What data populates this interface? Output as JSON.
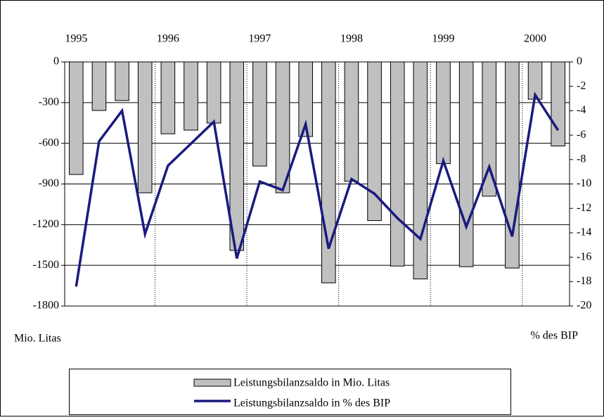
{
  "chart_data": {
    "type": "bar-line",
    "categories": [
      "1995",
      null,
      null,
      null,
      "1996",
      null,
      null,
      null,
      "1997",
      null,
      null,
      null,
      "1998",
      null,
      null,
      null,
      "1999",
      null,
      null,
      null,
      "2000",
      null
    ],
    "series": [
      {
        "name": "Leistungsbilanzsaldo in Mio. Litas",
        "type": "bar",
        "color": "#c0c0c0",
        "values": [
          -830,
          -358,
          -285,
          -965,
          -530,
          -503,
          -451,
          -1390,
          -768,
          -965,
          -550,
          -1629,
          -880,
          -1170,
          -1505,
          -1600,
          -750,
          -1510,
          -990,
          -1520,
          -275,
          -620
        ]
      },
      {
        "name": "Leistungsbilanzsaldo in % des BIP",
        "type": "line",
        "axis": "y2",
        "color": "#1a1a80",
        "values": [
          -18.4,
          -6.5,
          -4.0,
          -14.1,
          -8.5,
          -6.7,
          -4.9,
          -16.1,
          -9.8,
          -10.5,
          -5.1,
          -15.3,
          -9.6,
          -10.8,
          -12.8,
          -14.5,
          -8.1,
          -13.5,
          -8.6,
          -14.3,
          -2.7,
          -5.6
        ]
      }
    ],
    "ylim": [
      -1800,
      0
    ],
    "yticks": [
      0,
      -300,
      -600,
      -900,
      -1200,
      -1500,
      -1800
    ],
    "y2lim": [
      -20,
      0
    ],
    "y2ticks": [
      0,
      -2,
      -4,
      -6,
      -8,
      -10,
      -12,
      -14,
      -16,
      -18,
      -20
    ],
    "ylabel": "Mio. Litas",
    "y2label": "% des BIP",
    "grid": true
  }
}
